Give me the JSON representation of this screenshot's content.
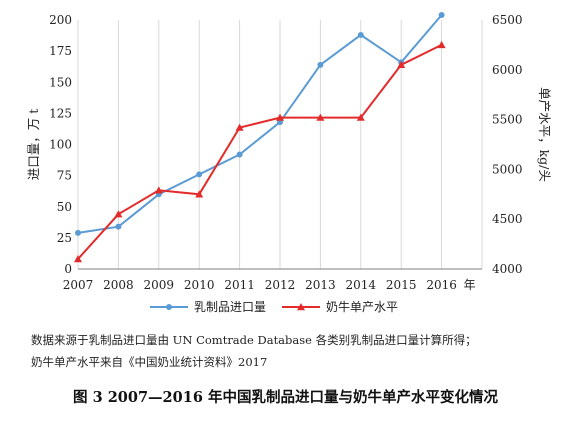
{
  "chart_data": {
    "type": "line",
    "categories": [
      "2007",
      "2008",
      "2009",
      "2010",
      "2011",
      "2012",
      "2013",
      "2014",
      "2015",
      "2016"
    ],
    "x_unit": "年",
    "y_left": {
      "label": "进口量，万 t",
      "ylim": [
        0,
        200
      ],
      "ticks": [
        0,
        25,
        50,
        75,
        100,
        125,
        150,
        175,
        200
      ]
    },
    "y_right": {
      "label": "单产水平，kg/头",
      "ylim": [
        4000,
        6500
      ],
      "ticks": [
        4000,
        4500,
        5000,
        5500,
        6000,
        6500
      ]
    },
    "series": [
      {
        "name": "乳制品进口量",
        "axis": "left",
        "color": "#5b9bd5",
        "marker": "circle",
        "values": [
          29,
          34,
          60,
          76,
          92,
          118,
          164,
          188,
          166,
          204
        ]
      },
      {
        "name": "奶牛单产水平",
        "axis": "right",
        "color": "#e32b2b",
        "marker": "triangle",
        "values": [
          4100,
          4550,
          4790,
          4750,
          5420,
          5520,
          5520,
          5520,
          6050,
          6250
        ]
      }
    ],
    "grid": {
      "vertical": true,
      "horizontal": false
    },
    "legend_position": "bottom"
  },
  "notes": [
    "数据来源于乳制品进口量由 UN Comtrade Database 各类别乳制品进口量计算所得；",
    "奶牛单产水平来自《中国奶业统计资料》2017"
  ],
  "caption": "图 3  2007—2016 年中国乳制品进口量与奶牛单产水平变化情况"
}
